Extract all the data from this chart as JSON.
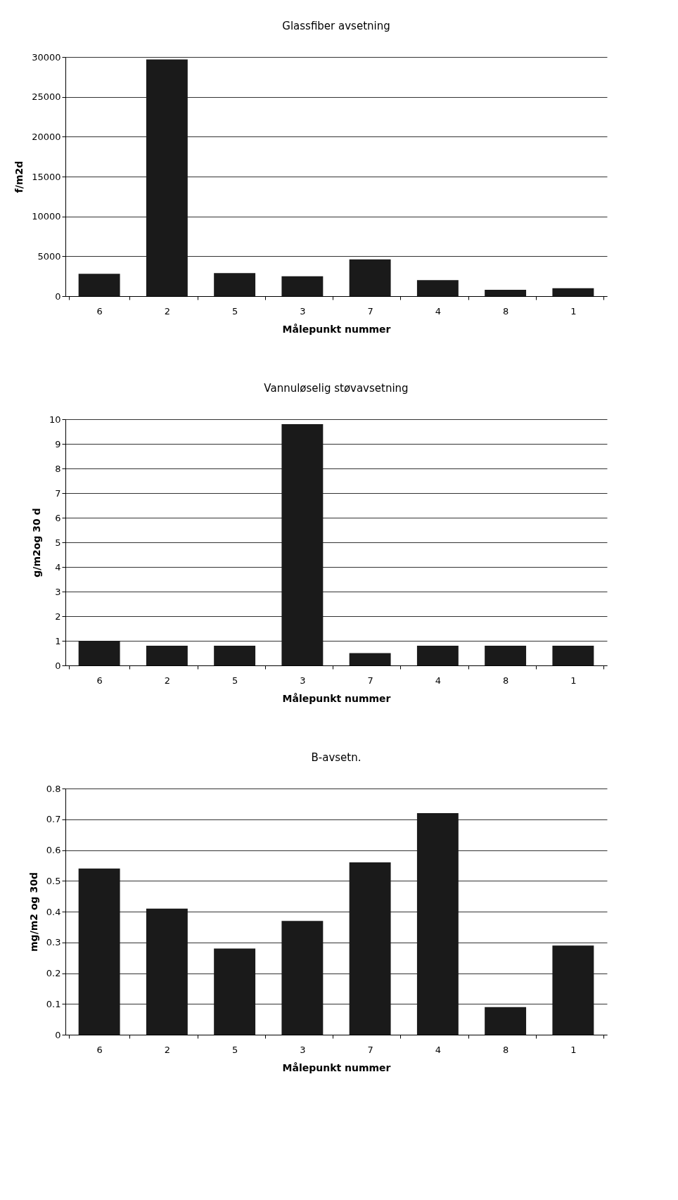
{
  "chart_data": [
    {
      "type": "bar",
      "title": "Glassfiber avsetning",
      "xlabel": "Målepunkt nummer",
      "ylabel": "f/m2d",
      "categories": [
        "6",
        "2",
        "5",
        "3",
        "7",
        "4",
        "8",
        "1"
      ],
      "values": [
        2800,
        29700,
        2900,
        2500,
        4600,
        2000,
        800,
        1000
      ],
      "color": "#1a1a1a",
      "ylim": [
        0,
        30000
      ],
      "yticks": [
        0,
        5000,
        10000,
        15000,
        20000,
        25000,
        30000
      ],
      "grid": "y"
    },
    {
      "type": "bar",
      "title": "Vannuløselig støvavsetning",
      "xlabel": "Målepunkt nummer",
      "ylabel": "g/m2og 30 d",
      "categories": [
        "6",
        "2",
        "5",
        "3",
        "7",
        "4",
        "8",
        "1"
      ],
      "values": [
        1.0,
        0.8,
        0.8,
        9.8,
        0.5,
        0.8,
        0.8,
        0.8
      ],
      "color": "#1a1a1a",
      "ylim": [
        0,
        10
      ],
      "yticks": [
        0,
        1,
        2,
        3,
        4,
        5,
        6,
        7,
        8,
        9,
        10
      ],
      "grid": "y"
    },
    {
      "type": "bar",
      "title": "B-avsetn.",
      "xlabel": "Målepunkt nummer",
      "ylabel": "mg/m2 og 30d",
      "categories": [
        "6",
        "2",
        "5",
        "3",
        "7",
        "4",
        "8",
        "1"
      ],
      "values": [
        0.54,
        0.41,
        0.28,
        0.37,
        0.56,
        0.72,
        0.09,
        0.29
      ],
      "color": "#1a1a1a",
      "ylim": [
        0,
        0.8
      ],
      "yticks": [
        0,
        0.1,
        0.2,
        0.3,
        0.4,
        0.5,
        0.6,
        0.7,
        0.8
      ],
      "grid": "y"
    }
  ]
}
